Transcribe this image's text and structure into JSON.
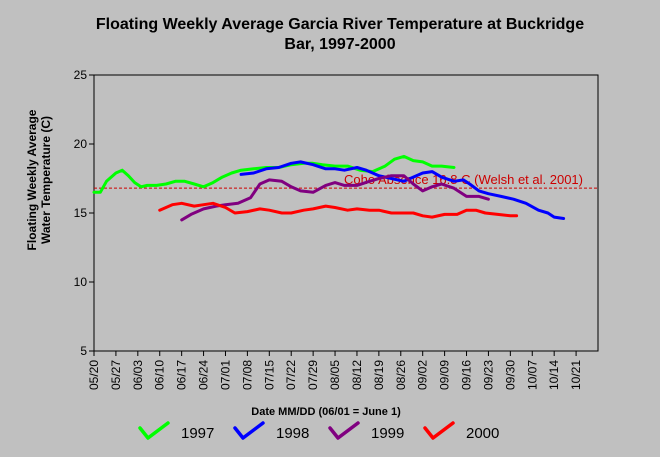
{
  "chart_data": {
    "type": "line",
    "title_line1": "Floating Weekly Average Garcia River Temperature at Buckridge",
    "title_line2": "Bar, 1997-2000",
    "ylabel_line1": "Floating Weekly Average",
    "ylabel_line2": "Water Temperature (C)",
    "xlabel": "Date MM/DD (06/01 = June 1)",
    "ylim": [
      5,
      25
    ],
    "yticks": [
      5,
      10,
      15,
      20,
      25
    ],
    "xticks": [
      "05/20",
      "05/27",
      "06/03",
      "06/10",
      "06/17",
      "06/24",
      "07/01",
      "07/08",
      "07/15",
      "07/22",
      "07/29",
      "08/05",
      "08/12",
      "08/19",
      "08/26",
      "09/02",
      "09/09",
      "09/16",
      "09/23",
      "09/30",
      "10/07",
      "10/14",
      "10/21"
    ],
    "xlim": [
      "05/20",
      "10/28"
    ],
    "legend_position": "bottom",
    "threshold": {
      "value": 16.8,
      "label": "Coho Absence 16.8 C (Welsh et al. 2001)",
      "color": "#cc0000"
    },
    "series": [
      {
        "name": "1997",
        "color": "#00ff00",
        "points": [
          [
            "05/20",
            16.5
          ],
          [
            "05/22",
            16.5
          ],
          [
            "05/24",
            17.3
          ],
          [
            "05/27",
            17.9
          ],
          [
            "05/29",
            18.1
          ],
          [
            "05/31",
            17.7
          ],
          [
            "06/02",
            17.2
          ],
          [
            "06/04",
            16.9
          ],
          [
            "06/06",
            17.0
          ],
          [
            "06/09",
            17.0
          ],
          [
            "06/12",
            17.1
          ],
          [
            "06/15",
            17.3
          ],
          [
            "06/18",
            17.3
          ],
          [
            "06/21",
            17.1
          ],
          [
            "06/24",
            16.9
          ],
          [
            "06/27",
            17.2
          ],
          [
            "06/30",
            17.6
          ],
          [
            "07/03",
            17.9
          ],
          [
            "07/06",
            18.1
          ],
          [
            "07/10",
            18.2
          ],
          [
            "07/14",
            18.3
          ],
          [
            "07/18",
            18.3
          ],
          [
            "07/22",
            18.5
          ],
          [
            "07/26",
            18.6
          ],
          [
            "07/29",
            18.6
          ],
          [
            "08/01",
            18.5
          ],
          [
            "08/05",
            18.4
          ],
          [
            "08/09",
            18.4
          ],
          [
            "08/13",
            18.1
          ],
          [
            "08/17",
            18.0
          ],
          [
            "08/21",
            18.4
          ],
          [
            "08/24",
            18.9
          ],
          [
            "08/27",
            19.1
          ],
          [
            "08/30",
            18.8
          ],
          [
            "09/02",
            18.7
          ],
          [
            "09/05",
            18.4
          ],
          [
            "09/08",
            18.4
          ],
          [
            "09/12",
            18.3
          ]
        ]
      },
      {
        "name": "1998",
        "color": "#0000ff",
        "points": [
          [
            "07/06",
            17.8
          ],
          [
            "07/10",
            17.9
          ],
          [
            "07/14",
            18.2
          ],
          [
            "07/18",
            18.3
          ],
          [
            "07/22",
            18.6
          ],
          [
            "07/25",
            18.7
          ],
          [
            "07/29",
            18.5
          ],
          [
            "08/02",
            18.2
          ],
          [
            "08/05",
            18.2
          ],
          [
            "08/08",
            18.1
          ],
          [
            "08/12",
            18.3
          ],
          [
            "08/15",
            18.1
          ],
          [
            "08/19",
            17.7
          ],
          [
            "08/23",
            17.5
          ],
          [
            "08/27",
            17.3
          ],
          [
            "08/30",
            17.6
          ],
          [
            "09/02",
            17.9
          ],
          [
            "09/05",
            18.0
          ],
          [
            "09/08",
            17.6
          ],
          [
            "09/12",
            17.3
          ],
          [
            "09/15",
            17.4
          ],
          [
            "09/17",
            17.1
          ],
          [
            "09/20",
            16.6
          ],
          [
            "09/23",
            16.4
          ],
          [
            "09/27",
            16.2
          ],
          [
            "10/01",
            16.0
          ],
          [
            "10/05",
            15.7
          ],
          [
            "10/09",
            15.2
          ],
          [
            "10/12",
            15.0
          ],
          [
            "10/14",
            14.7
          ],
          [
            "10/17",
            14.6
          ]
        ]
      },
      {
        "name": "1999",
        "color": "#800080",
        "points": [
          [
            "06/17",
            14.5
          ],
          [
            "06/20",
            14.9
          ],
          [
            "06/24",
            15.3
          ],
          [
            "06/28",
            15.5
          ],
          [
            "07/01",
            15.6
          ],
          [
            "07/05",
            15.7
          ],
          [
            "07/09",
            16.1
          ],
          [
            "07/12",
            17.1
          ],
          [
            "07/15",
            17.4
          ],
          [
            "07/19",
            17.3
          ],
          [
            "07/22",
            16.9
          ],
          [
            "07/25",
            16.6
          ],
          [
            "07/29",
            16.5
          ],
          [
            "08/02",
            17.0
          ],
          [
            "08/05",
            17.2
          ],
          [
            "08/08",
            17.0
          ],
          [
            "08/12",
            17.0
          ],
          [
            "08/16",
            17.3
          ],
          [
            "08/19",
            17.5
          ],
          [
            "08/23",
            17.7
          ],
          [
            "08/27",
            17.7
          ],
          [
            "08/30",
            17.1
          ],
          [
            "09/02",
            16.6
          ],
          [
            "09/05",
            16.9
          ],
          [
            "09/08",
            17.1
          ],
          [
            "09/12",
            16.8
          ],
          [
            "09/16",
            16.2
          ],
          [
            "09/20",
            16.2
          ],
          [
            "09/23",
            16.0
          ]
        ]
      },
      {
        "name": "2000",
        "color": "#ff0000",
        "points": [
          [
            "06/10",
            15.2
          ],
          [
            "06/14",
            15.6
          ],
          [
            "06/17",
            15.7
          ],
          [
            "06/21",
            15.5
          ],
          [
            "06/24",
            15.6
          ],
          [
            "06/27",
            15.7
          ],
          [
            "07/01",
            15.4
          ],
          [
            "07/04",
            15.0
          ],
          [
            "07/08",
            15.1
          ],
          [
            "07/12",
            15.3
          ],
          [
            "07/15",
            15.2
          ],
          [
            "07/19",
            15.0
          ],
          [
            "07/22",
            15.0
          ],
          [
            "07/26",
            15.2
          ],
          [
            "07/29",
            15.3
          ],
          [
            "08/02",
            15.5
          ],
          [
            "08/05",
            15.4
          ],
          [
            "08/09",
            15.2
          ],
          [
            "08/12",
            15.3
          ],
          [
            "08/16",
            15.2
          ],
          [
            "08/19",
            15.2
          ],
          [
            "08/23",
            15.0
          ],
          [
            "08/27",
            15.0
          ],
          [
            "08/30",
            15.0
          ],
          [
            "09/02",
            14.8
          ],
          [
            "09/05",
            14.7
          ],
          [
            "09/09",
            14.9
          ],
          [
            "09/13",
            14.9
          ],
          [
            "09/16",
            15.2
          ],
          [
            "09/19",
            15.2
          ],
          [
            "09/22",
            15.0
          ],
          [
            "09/26",
            14.9
          ],
          [
            "09/30",
            14.8
          ],
          [
            "10/02",
            14.8
          ]
        ]
      }
    ]
  }
}
